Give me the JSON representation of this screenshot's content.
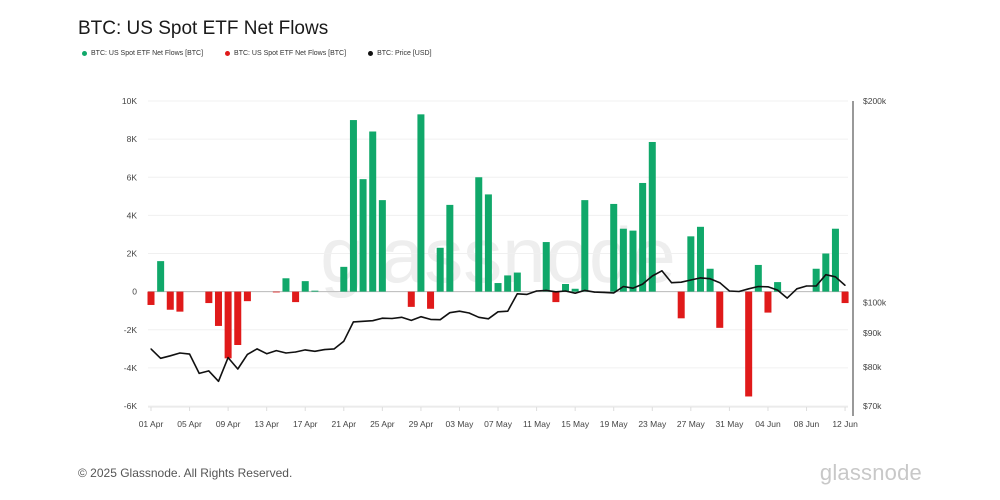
{
  "title": "BTC: US Spot ETF Net Flows",
  "legend": [
    {
      "label": "BTC: US Spot ETF Net Flows [BTC]",
      "color": "#10a86a"
    },
    {
      "label": "BTC: US Spot ETF Net Flows [BTC]",
      "color": "#e01a1a"
    },
    {
      "label": "BTC: Price [USD]",
      "color": "#111111"
    }
  ],
  "footer": "© 2025 Glassnode. All Rights Reserved.",
  "brand": "glassnode",
  "watermark": "glassnode",
  "chart_data": {
    "type": "bar",
    "title": "BTC: US Spot ETF Net Flows",
    "xlabel": "",
    "ylabel": "",
    "start_date": "01 Apr",
    "days": 73,
    "x_ticks": [
      "01 Apr",
      "05 Apr",
      "09 Apr",
      "13 Apr",
      "17 Apr",
      "21 Apr",
      "25 Apr",
      "29 Apr",
      "03 May",
      "07 May",
      "11 May",
      "15 May",
      "19 May",
      "23 May",
      "27 May",
      "31 May",
      "04 Jun",
      "08 Jun",
      "12 Jun"
    ],
    "y_left": {
      "ticks": [
        10000,
        8000,
        6000,
        4000,
        2000,
        0,
        -2000,
        -4000,
        -6000
      ],
      "tick_labels": [
        "10K",
        "8K",
        "6K",
        "4K",
        "2K",
        "0",
        "-2K",
        "-4K",
        "-6K"
      ],
      "ylim": [
        -6000,
        10000
      ]
    },
    "y_right": {
      "scale": "log",
      "ticks": [
        200000,
        100000,
        90000,
        80000,
        70000
      ],
      "tick_labels": [
        "$200k",
        "$100k",
        "$90k",
        "$80k",
        "$70k"
      ],
      "ylim": [
        70000,
        200000
      ]
    },
    "grid": true,
    "legend_position": "top-left",
    "series": [
      {
        "name": "BTC: US Spot ETF Net Flows [BTC]",
        "type": "bar",
        "positive_color": "#10a86a",
        "negative_color": "#e01a1a",
        "values": [
          -700,
          1600,
          -950,
          -1050,
          null,
          null,
          -600,
          -1800,
          -3500,
          -2800,
          -500,
          null,
          null,
          -30,
          700,
          -550,
          550,
          50,
          null,
          null,
          1300,
          9000,
          5900,
          8400,
          4800,
          null,
          null,
          -800,
          9300,
          -900,
          2300,
          4550,
          null,
          null,
          6000,
          5100,
          450,
          850,
          1000,
          null,
          null,
          2600,
          -550,
          400,
          150,
          4800,
          null,
          null,
          4600,
          3300,
          3200,
          5700,
          7850,
          null,
          null,
          -1400,
          2900,
          3400,
          1200,
          -1900,
          null,
          null,
          -5500,
          1400,
          -1100,
          500,
          null,
          null,
          null,
          1200,
          2000,
          3300,
          -600
        ]
      },
      {
        "name": "BTC: Price [USD]",
        "type": "line",
        "color": "#111111",
        "values": [
          85200,
          82500,
          83200,
          84000,
          83700,
          78300,
          79000,
          76200,
          82700,
          79500,
          83600,
          85200,
          83800,
          84700,
          84000,
          84300,
          84900,
          84500,
          85000,
          85200,
          87500,
          93500,
          93700,
          93900,
          94700,
          94600,
          95000,
          94000,
          95200,
          94300,
          94200,
          96500,
          97000,
          96400,
          95000,
          94500,
          96800,
          97000,
          103000,
          102800,
          104000,
          104200,
          103700,
          104000,
          103200,
          104200,
          103600,
          103500,
          103300,
          105600,
          105000,
          106500,
          109500,
          111500,
          107000,
          107200,
          108000,
          108800,
          108500,
          107000,
          104000,
          103800,
          104800,
          105600,
          105500,
          104300,
          101500,
          104800,
          105800,
          105800,
          110000,
          109200,
          106000
        ]
      }
    ]
  }
}
